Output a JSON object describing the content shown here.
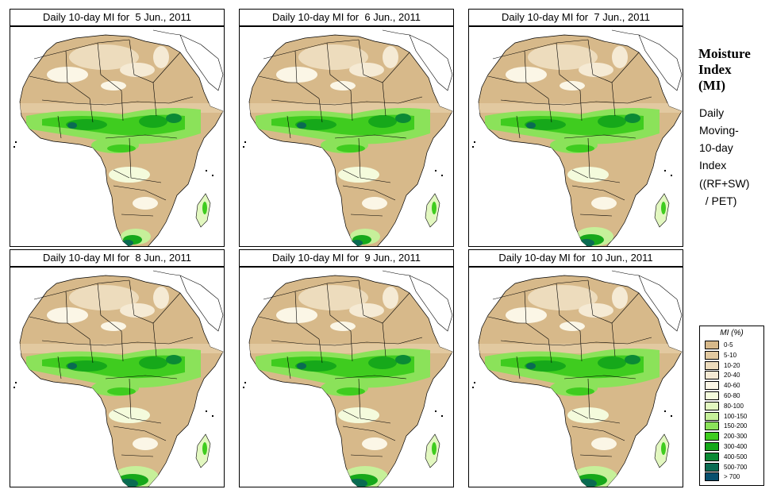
{
  "panels": [
    {
      "title": "Daily 10-day MI for  5 Jun., 2011",
      "wet_level": 1,
      "south_wet": 1
    },
    {
      "title": "Daily 10-day MI for  6 Jun., 2011",
      "wet_level": 1,
      "south_wet": 1
    },
    {
      "title": "Daily 10-day MI for  7 Jun., 2011",
      "wet_level": 1,
      "south_wet": 2
    },
    {
      "title": "Daily 10-day MI for  8 Jun., 2011",
      "wet_level": 2,
      "south_wet": 3
    },
    {
      "title": "Daily 10-day MI for  9 Jun., 2011",
      "wet_level": 2,
      "south_wet": 3
    },
    {
      "title": "Daily 10-day MI for  10 Jun., 2011",
      "wet_level": 2,
      "south_wet": 3
    }
  ],
  "side": {
    "title_lines": [
      "Moisture",
      "Index",
      "(MI)"
    ],
    "desc_lines": [
      "Daily",
      "Moving-",
      "10-day",
      "Index"
    ],
    "formula_lines": [
      "((RF+SW)",
      "  / PET)"
    ]
  },
  "legend": {
    "title": "MI (%)",
    "items": [
      {
        "label": "0-5",
        "color": "#d7b98a"
      },
      {
        "label": "5-10",
        "color": "#e2c9a0"
      },
      {
        "label": "10-20",
        "color": "#eddcbd"
      },
      {
        "label": "20-40",
        "color": "#f5ead4"
      },
      {
        "label": "40-60",
        "color": "#fbf6e6"
      },
      {
        "label": "60-80",
        "color": "#f4fbdc"
      },
      {
        "label": "80-100",
        "color": "#e2f7c0"
      },
      {
        "label": "100-150",
        "color": "#c6f09a"
      },
      {
        "label": "150-200",
        "color": "#8be25a"
      },
      {
        "label": "200-300",
        "color": "#3fcc1f"
      },
      {
        "label": "300-400",
        "color": "#16a81a"
      },
      {
        "label": "400-500",
        "color": "#0b8a35"
      },
      {
        "label": "500-700",
        "color": "#0a6b52"
      },
      {
        "label": "> 700",
        "color": "#08506e"
      }
    ]
  }
}
